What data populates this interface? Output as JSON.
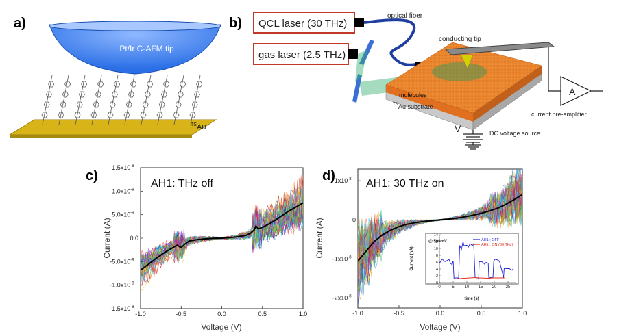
{
  "panels": {
    "a": {
      "label": "a)",
      "tip_label": "Pt/Ir C-AFM tip",
      "substrate_label_sup": "TS",
      "substrate_label": "Au"
    },
    "b": {
      "label": "b)",
      "qcl_laser": "QCL laser (30 THz)",
      "gas_laser": "gas laser (2.5 THz)",
      "optical_fiber": "optical fiber",
      "conducting_tip": "conducting tip",
      "molecules": "molecules",
      "substrate_sup": "TS",
      "substrate": "Au substrate",
      "ammeter": "A",
      "preamp": "current pre-amplifier",
      "voltage_symbol": "V",
      "dc_source": "DC voltage source"
    }
  },
  "chart_data": [
    {
      "id": "c",
      "type": "line",
      "panel_label": "c)",
      "title": "AH1: THz off",
      "xlabel": "Voltage (V)",
      "ylabel": "Current (A)",
      "xlim": [
        -1.0,
        1.0
      ],
      "ylim": [
        -1.5e-08,
        1.5e-08
      ],
      "xticks": [
        "-1.0",
        "-0.5",
        "0.0",
        "0.5",
        "1.0"
      ],
      "yticks": [
        {
          "v": -1.5e-08,
          "l": "-1.5x10",
          "e": "-8"
        },
        {
          "v": -1e-08,
          "l": "-1.0x10",
          "e": "-8"
        },
        {
          "v": -5e-09,
          "l": "-5.0x10",
          "e": "-9"
        },
        {
          "v": 0,
          "l": "0.0",
          "e": ""
        },
        {
          "v": 5e-09,
          "l": "5.0x10",
          "e": "-9"
        },
        {
          "v": 1e-08,
          "l": "1.0x10",
          "e": "-8"
        },
        {
          "v": 1.5e-08,
          "l": "1.5x10",
          "e": "-8"
        }
      ],
      "average_curve": {
        "x": [
          -1.0,
          -0.9,
          -0.8,
          -0.7,
          -0.6,
          -0.55,
          -0.5,
          -0.45,
          -0.4,
          -0.3,
          -0.2,
          -0.1,
          0.0,
          0.1,
          0.2,
          0.3,
          0.35,
          0.4,
          0.42,
          0.45,
          0.5,
          0.6,
          0.7,
          0.8,
          0.9,
          1.0
        ],
        "y": [
          -6.8e-09,
          -5.5e-09,
          -4.2e-09,
          -3e-09,
          -2e-09,
          -1.5e-09,
          -2e-09,
          -1.2e-09,
          -6e-10,
          -3e-10,
          -1.5e-10,
          -5e-11,
          0.0,
          1e-10,
          3e-10,
          6e-10,
          1e-09,
          1.8e-09,
          2.6e-09,
          2e-09,
          2.3e-09,
          3.2e-09,
          4.3e-09,
          5.5e-09,
          6.5e-09,
          7.5e-09
        ]
      }
    },
    {
      "id": "d",
      "type": "line",
      "panel_label": "d)",
      "title": "AH1: 30 THz on",
      "xlabel": "Voltage (V)",
      "ylabel": "Current (A)",
      "xlim": [
        -1.0,
        1.0
      ],
      "ylim": [
        -2.25e-08,
        1.3e-08
      ],
      "xticks": [
        "-1.0",
        "-0.5",
        "0.0",
        "0.5",
        "1.0"
      ],
      "yticks": [
        {
          "v": -2e-08,
          "l": "-2x10",
          "e": "-8"
        },
        {
          "v": -1e-08,
          "l": "-1x10",
          "e": "-8"
        },
        {
          "v": 0,
          "l": "0",
          "e": ""
        },
        {
          "v": 1e-08,
          "l": "1x10",
          "e": "-8"
        }
      ],
      "average_curve": {
        "x": [
          -1.0,
          -0.9,
          -0.8,
          -0.7,
          -0.6,
          -0.5,
          -0.4,
          -0.3,
          -0.2,
          -0.1,
          0.0,
          0.1,
          0.2,
          0.3,
          0.4,
          0.5,
          0.6,
          0.7,
          0.8,
          0.9,
          1.0
        ],
        "y": [
          -1.05e-08,
          -8e-09,
          -5.5e-09,
          -3.8e-09,
          -2.6e-09,
          -1.7e-09,
          -1.1e-09,
          -7e-10,
          -4e-10,
          -2e-10,
          0.0,
          2e-10,
          4.5e-10,
          8e-10,
          1.2e-09,
          1.7e-09,
          2.3e-09,
          3e-09,
          4e-09,
          5.2e-09,
          6.5e-09
        ]
      },
      "inset": {
        "type": "line",
        "annotation": "@ 500mV",
        "xlabel": "time (s)",
        "ylabel": "Current (nA)",
        "xlim": [
          0,
          28
        ],
        "ylim": [
          0,
          14
        ],
        "xticks": [
          "0",
          "5",
          "10",
          "15",
          "20",
          "25"
        ],
        "yticks": [
          "0",
          "2",
          "4",
          "6",
          "8",
          "10",
          "12",
          "14"
        ],
        "series": [
          {
            "name": "AH1 : OFF",
            "color": "#1f1fd6",
            "x": [
              0,
              1,
              2,
              2.8,
              3.5,
              4.0,
              4.6,
              5.0,
              5.3,
              6.5,
              7.0,
              7.4,
              8.0,
              8.6,
              9.0,
              10.0,
              10.6,
              11.2,
              12.0,
              12.5,
              13.0,
              14.3,
              14.5,
              15.5,
              16.5,
              17.0,
              17.8,
              18.0,
              19.5,
              19.8,
              20.2,
              21.0,
              21.6,
              22.0,
              23.4,
              23.6,
              24.5,
              25.5,
              26.5,
              27.0
            ],
            "y": [
              6.0,
              6.5,
              5.8,
              6.2,
              7.0,
              6.0,
              5.5,
              6.5,
              1.2,
              1.3,
              1.2,
              11.0,
              9.5,
              12.0,
              10.8,
              11.0,
              10.5,
              11.5,
              10.8,
              11.2,
              1.5,
              1.4,
              5.8,
              6.2,
              5.5,
              6.0,
              5.8,
              1.3,
              1.4,
              6.0,
              7.0,
              6.4,
              6.8,
              6.2,
              1.4,
              4.0,
              3.8,
              4.2,
              3.9,
              4.0
            ]
          },
          {
            "name": "AH1 : ON (30 THz)",
            "color": "#e03020",
            "x": [
              5.2,
              6.0,
              7.0,
              7.3,
              13.0,
              14.4,
              17.9,
              19.6,
              23.5,
              23.7
            ],
            "y": [
              1.2,
              1.1,
              1.2,
              1.2,
              1.5,
              1.4,
              1.3,
              1.4,
              1.4,
              1.4
            ]
          }
        ]
      }
    }
  ]
}
